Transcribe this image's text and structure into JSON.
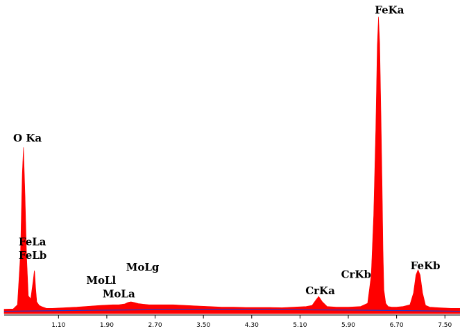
{
  "chart_data": {
    "type": "area",
    "title": "",
    "xlabel": "",
    "ylabel": "",
    "xlim": [
      0.2,
      7.75
    ],
    "ylim": [
      0,
      1000
    ],
    "x_ticks": [
      "1.10",
      "1.90",
      "2.70",
      "3.50",
      "4.30",
      "5.10",
      "5.90",
      "6.70",
      "7.50"
    ],
    "x_tick_values": [
      1.1,
      1.9,
      2.7,
      3.5,
      4.3,
      5.1,
      5.9,
      6.7,
      7.5
    ],
    "series": [
      {
        "type": "area",
        "color": "#ff0000",
        "x": [
          0.2,
          0.35,
          0.42,
          0.47,
          0.5,
          0.52,
          0.545,
          0.57,
          0.6,
          0.64,
          0.68,
          0.7,
          0.705,
          0.72,
          0.74,
          0.78,
          0.82,
          0.9,
          1.0,
          1.2,
          1.4,
          1.6,
          1.8,
          2.0,
          2.1,
          2.2,
          2.25,
          2.3,
          2.35,
          2.42,
          2.5,
          2.6,
          2.8,
          3.0,
          3.2,
          3.4,
          3.6,
          3.8,
          4.0,
          4.2,
          4.4,
          4.6,
          4.8,
          5.0,
          5.2,
          5.3,
          5.36,
          5.41,
          5.47,
          5.55,
          5.7,
          5.9,
          6.1,
          6.22,
          6.28,
          6.32,
          6.355,
          6.38,
          6.4,
          6.42,
          6.44,
          6.46,
          6.475,
          6.49,
          6.52,
          6.56,
          6.62,
          6.7,
          6.8,
          6.92,
          6.98,
          7.02,
          7.055,
          7.09,
          7.13,
          7.18,
          7.25,
          7.4,
          7.6,
          7.75
        ],
        "values": [
          15,
          16,
          30,
          200,
          470,
          560,
          400,
          200,
          60,
          50,
          110,
          145,
          140,
          90,
          40,
          28,
          24,
          18,
          18,
          20,
          22,
          25,
          28,
          30,
          30,
          33,
          38,
          40,
          38,
          34,
          32,
          30,
          30,
          30,
          28,
          26,
          24,
          22,
          22,
          21,
          21,
          21,
          20,
          22,
          24,
          28,
          45,
          58,
          40,
          24,
          22,
          22,
          24,
          35,
          130,
          330,
          620,
          900,
          1000,
          910,
          680,
          430,
          210,
          80,
          35,
          24,
          22,
          22,
          24,
          30,
          70,
          130,
          148,
          130,
          70,
          28,
          22,
          20,
          18,
          18
        ]
      },
      {
        "type": "line",
        "color": "#2233cc",
        "x": [
          0.2,
          1.0,
          2.0,
          3.0,
          4.0,
          5.0,
          6.0,
          7.0,
          7.75
        ],
        "values": [
          8,
          10,
          12,
          14,
          14,
          13,
          12,
          10,
          8
        ]
      }
    ],
    "annotations": [
      {
        "text": "O Ka",
        "x": 0.35,
        "y": 580
      },
      {
        "text": "FeLa",
        "x": 0.44,
        "y": 230
      },
      {
        "text": "FeLb",
        "x": 0.44,
        "y": 185
      },
      {
        "text": "MoLl",
        "x": 1.56,
        "y": 100
      },
      {
        "text": "MoLa",
        "x": 1.83,
        "y": 55
      },
      {
        "text": "MoLg",
        "x": 2.22,
        "y": 145
      },
      {
        "text": "CrKa",
        "x": 5.19,
        "y": 65
      },
      {
        "text": "CrKb",
        "x": 5.78,
        "y": 120
      },
      {
        "text": "FeKa",
        "x": 6.34,
        "y": 1010
      },
      {
        "text": "FeKb",
        "x": 6.93,
        "y": 150
      }
    ],
    "grid": false,
    "legend": "none"
  }
}
